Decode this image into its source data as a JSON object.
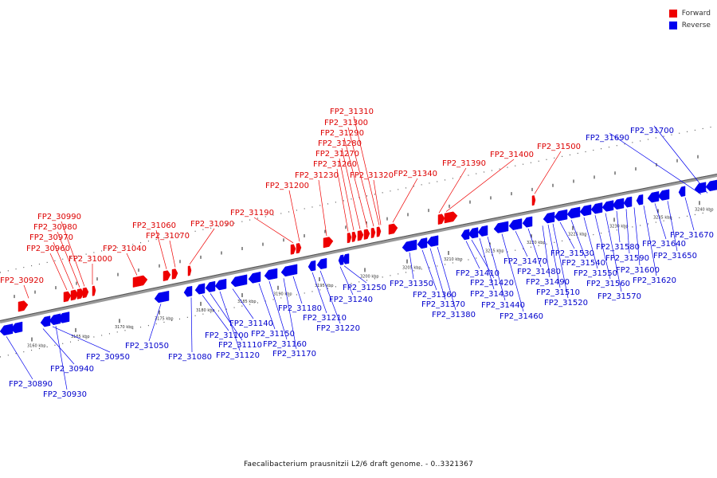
{
  "legend": [
    {
      "label": "Forward",
      "color": "#ee0000"
    },
    {
      "label": "Reverse",
      "color": "#0000ee"
    }
  ],
  "caption": "Faecalibacterium prausnitzii L2/6 draft genome. - 0..3321367",
  "colors": {
    "forward": "#ee0000",
    "reverse": "#0000ee",
    "backbone": "#888888"
  },
  "scale": {
    "unit": "kbp",
    "ticks": [
      "3160 kbp",
      "3165 kbp",
      "3170 kbp",
      "3175 kbp",
      "3180 kbp",
      "3185 kbp",
      "3190 kbp",
      "3195 kbp",
      "3200 kbp",
      "3205 kbp",
      "3210 kbp",
      "3215 kbp",
      "3220 kbp",
      "3225 kbp",
      "3230 kbp",
      "3235 kbp",
      "3240 kbp"
    ]
  },
  "forward_genes": [
    "FP2_30920",
    "FP2_30960",
    "FP2_30970",
    "FP2_30980",
    "FP2_30990",
    "FP2_31000",
    "FP2_31040",
    "FP2_31060",
    "FP2_31070",
    "FP2_31090",
    "FP2_31190",
    "FP2_31200",
    "FP2_31230",
    "FP2_31260",
    "FP2_31270",
    "FP2_31280",
    "FP2_31290",
    "FP2_31300",
    "FP2_31310",
    "FP2_31320",
    "FP2_31340",
    "FP2_31390",
    "FP2_31400",
    "FP2_31500"
  ],
  "reverse_genes": [
    "FP2_30890",
    "FP2_30930",
    "FP2_30940",
    "FP2_30950",
    "FP2_31050",
    "FP2_31080",
    "FP2_31100",
    "FP2_31110",
    "FP2_31120",
    "FP2_31140",
    "FP2_31150",
    "FP2_31160",
    "FP2_31170",
    "FP2_31180",
    "FP2_31210",
    "FP2_31220",
    "FP2_31240",
    "FP2_31250",
    "FP2_31350",
    "FP2_31360",
    "FP2_31370",
    "FP2_31380",
    "FP2_31410",
    "FP2_31420",
    "FP2_31430",
    "FP2_31440",
    "FP2_31460",
    "FP2_31470",
    "FP2_31480",
    "FP2_31490",
    "FP2_31510",
    "FP2_31520",
    "FP2_31530",
    "FP2_31540",
    "FP2_31550",
    "FP2_31560",
    "FP2_31570",
    "FP2_31580",
    "FP2_31590",
    "FP2_31600",
    "FP2_31620",
    "FP2_31640",
    "FP2_31650",
    "FP2_31670",
    "FP2_31690",
    "FP2_31700"
  ]
}
